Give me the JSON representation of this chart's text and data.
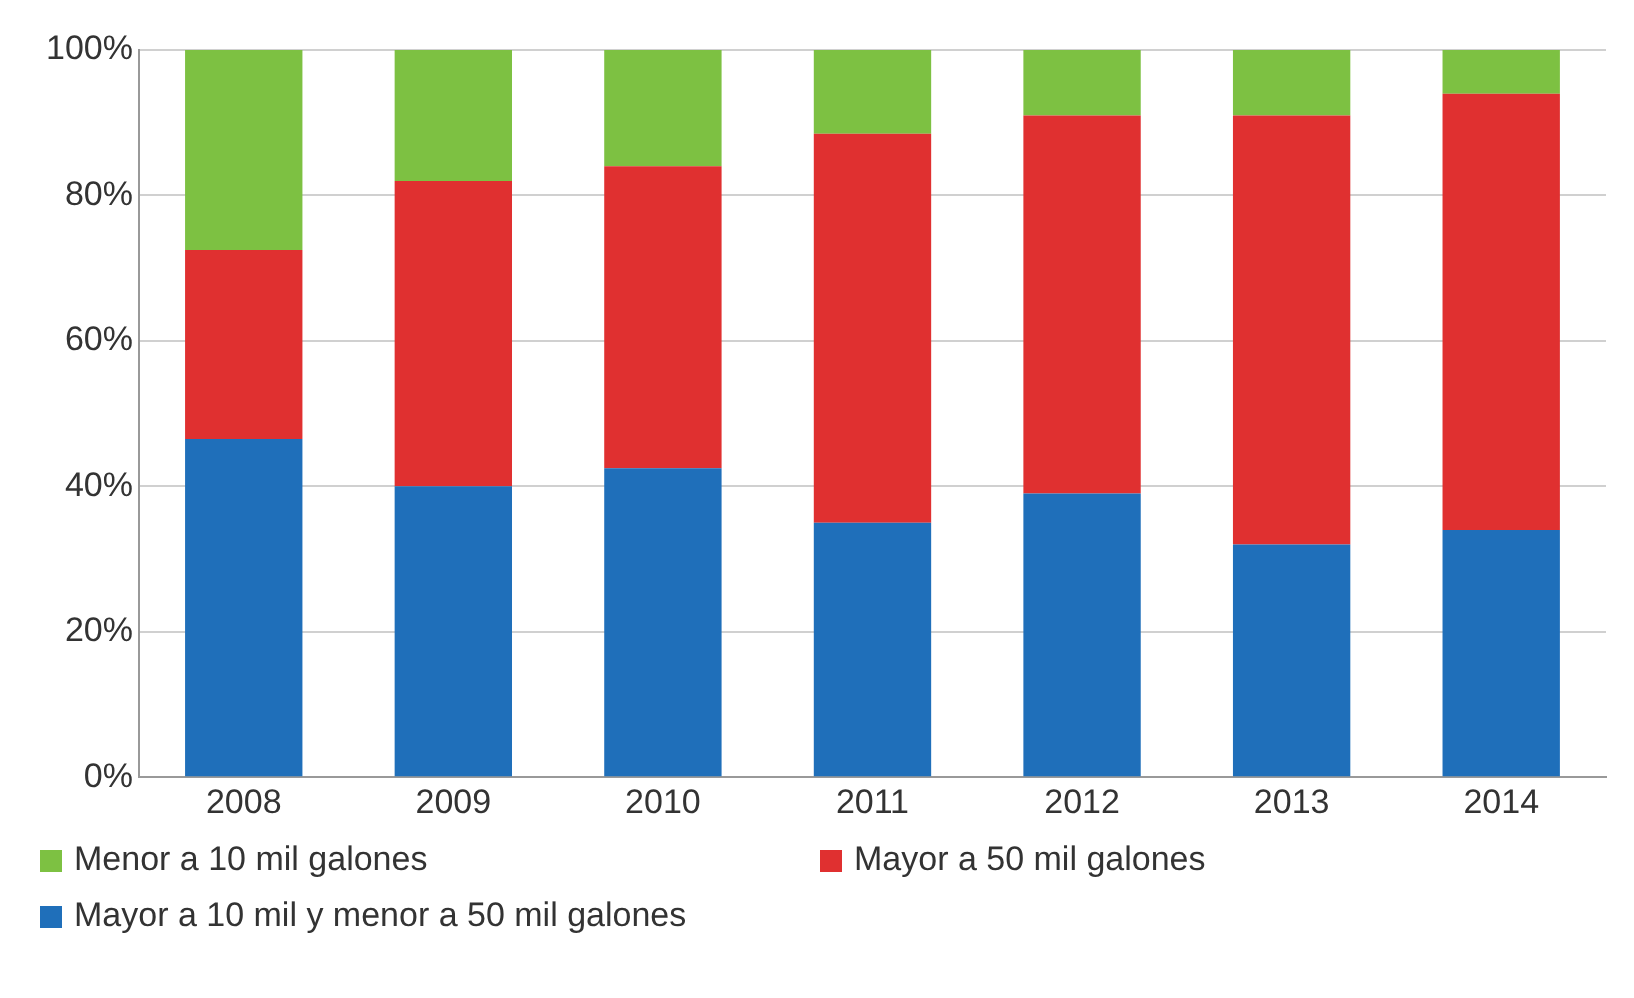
{
  "chart_data": {
    "type": "bar",
    "stacked": true,
    "categories": [
      "2008",
      "2009",
      "2010",
      "2011",
      "2012",
      "2013",
      "2014"
    ],
    "series": [
      {
        "name": "Mayor a 10 mil y menor a 50 mil galones",
        "color": "#1f6fba",
        "values": [
          46.5,
          40,
          42.5,
          35,
          39,
          32,
          34
        ]
      },
      {
        "name": "Mayor a 50 mil galones",
        "color": "#e03030",
        "values": [
          26,
          42,
          41.5,
          53.5,
          52,
          59,
          60
        ]
      },
      {
        "name": "Menor a 10 mil galones",
        "color": "#7dc142",
        "values": [
          27.5,
          18,
          16,
          11.5,
          9,
          9,
          6
        ]
      }
    ],
    "ylim": [
      0,
      100
    ],
    "yticks": [
      {
        "value": 0,
        "label": "0%"
      },
      {
        "value": 20,
        "label": "20%"
      },
      {
        "value": 40,
        "label": "40%"
      },
      {
        "value": 60,
        "label": "60%"
      },
      {
        "value": 80,
        "label": "80%"
      },
      {
        "value": 100,
        "label": "100%"
      }
    ],
    "grid": "y",
    "legend": "bottom"
  }
}
